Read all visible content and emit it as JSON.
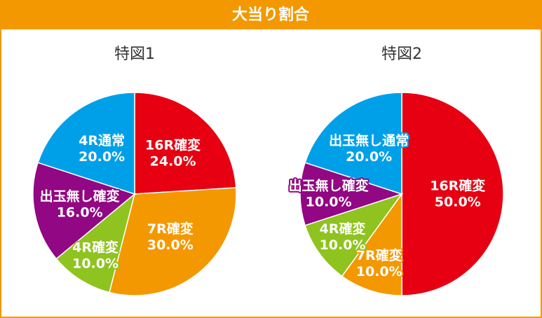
{
  "title": "大当り割合",
  "chart_data": [
    {
      "type": "pie",
      "title": "特図1",
      "categories": [
        "16R確変",
        "7R確変",
        "4R確変",
        "出玉無し確変",
        "4R通常"
      ],
      "values": [
        24,
        30,
        10,
        16,
        20
      ],
      "value_labels": [
        "24.0%",
        "30.0%",
        "10.0%",
        "16.0%",
        "20.0%"
      ],
      "colors": [
        "#e60012",
        "#f39800",
        "#8fc31f",
        "#920783",
        "#00a0e9"
      ]
    },
    {
      "type": "pie",
      "title": "特図2",
      "categories": [
        "16R確変",
        "7R確変",
        "4R確変",
        "出玉無し確変",
        "出玉無し通常"
      ],
      "values": [
        50,
        10,
        10,
        10,
        20
      ],
      "value_labels": [
        "50.0%",
        "10.0%",
        "10.0%",
        "10.0%",
        "20.0%"
      ],
      "colors": [
        "#e60012",
        "#f39800",
        "#8fc31f",
        "#920783",
        "#00a0e9"
      ]
    }
  ]
}
